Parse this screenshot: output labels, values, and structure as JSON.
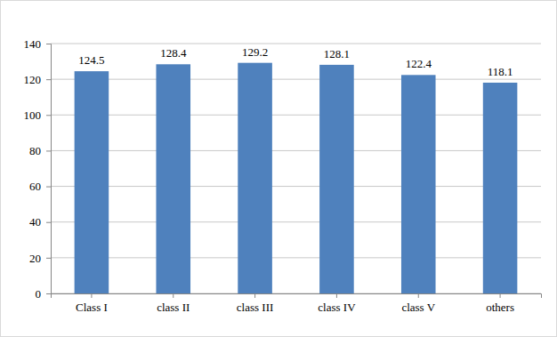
{
  "chart_data": {
    "type": "bar",
    "categories": [
      "Class I",
      "class II",
      "class III",
      "class IV",
      "class V",
      "others"
    ],
    "values": [
      124.5,
      128.4,
      129.2,
      128.1,
      122.4,
      118.1
    ],
    "color": "#4f81bd",
    "ylim": [
      0,
      140
    ],
    "yticks": [
      0,
      20,
      40,
      60,
      80,
      100,
      120,
      140
    ],
    "grid": true,
    "data_labels": true
  }
}
